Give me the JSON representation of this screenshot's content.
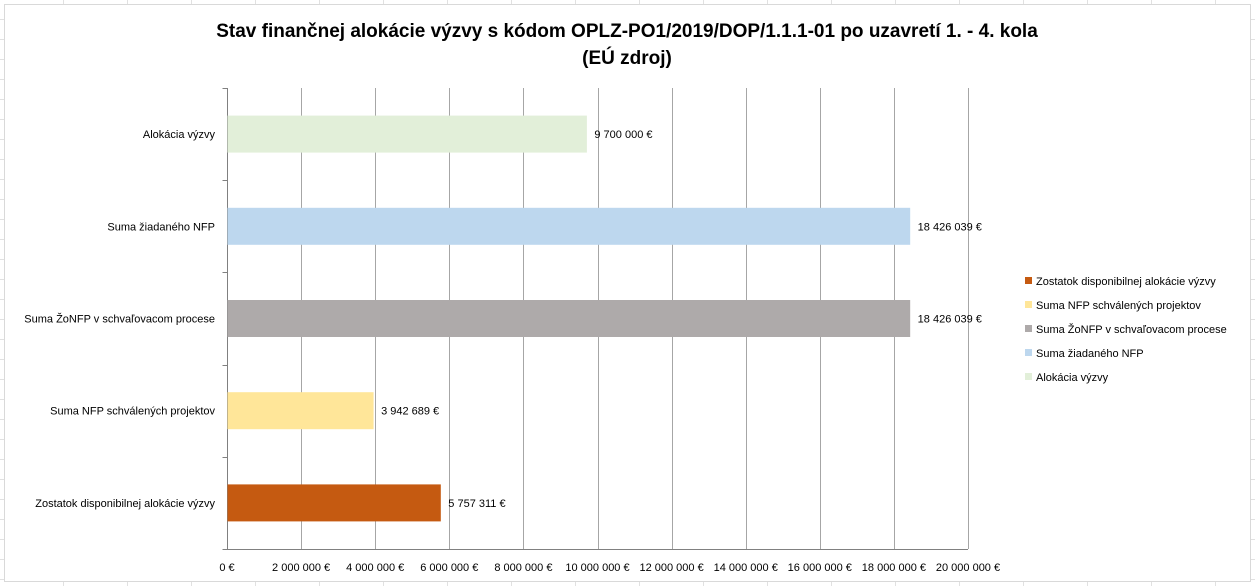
{
  "chart_data": {
    "type": "bar",
    "orientation": "horizontal",
    "title": [
      "Stav finančnej alokácie výzvy s kódom OPLZ-PO1/2019/DOP/1.1.1-01 po uzavretí 1. - 4. kola",
      "(EÚ zdroj)"
    ],
    "categories": [
      "Alokácia výzvy",
      "Suma žiadaného NFP",
      "Suma ŽoNFP v schvaľovacom procese",
      "Suma NFP schválených projektov",
      "Zostatok disponibilnej alokácie výzvy"
    ],
    "values": [
      9700000,
      18426039,
      18426039,
      3942689,
      5757311
    ],
    "data_labels": [
      "9 700 000 €",
      "18 426 039 €",
      "18 426 039 €",
      "3 942 689 €",
      "5 757 311 €"
    ],
    "colors": [
      "#e2efd9",
      "#bdd7ee",
      "#aeaaaa",
      "#ffe699",
      "#c55a11"
    ],
    "xlim": [
      0,
      20000000
    ],
    "x_ticks": [
      0,
      2000000,
      4000000,
      6000000,
      8000000,
      10000000,
      12000000,
      14000000,
      16000000,
      18000000,
      20000000
    ],
    "x_tick_labels": [
      "0 €",
      "2 000 000 €",
      "4 000 000 €",
      "6 000 000 €",
      "8 000 000 €",
      "10 000 000 €",
      "12 000 000 €",
      "14 000 000 €",
      "16 000 000 €",
      "18 000 000 €",
      "20 000 000 €"
    ],
    "xlabel": "",
    "ylabel": "",
    "grid": true,
    "legend_position": "right",
    "legend": [
      {
        "label": "Zostatok disponibilnej alokácie výzvy",
        "color": "#c55a11"
      },
      {
        "label": "Suma NFP schválených projektov",
        "color": "#ffe699"
      },
      {
        "label": "Suma ŽoNFP v schvaľovacom procese",
        "color": "#aeaaaa"
      },
      {
        "label": "Suma žiadaného NFP",
        "color": "#bdd7ee"
      },
      {
        "label": "Alokácia výzvy",
        "color": "#e2efd9"
      }
    ],
    "gridline_color": "#a6a6a6"
  }
}
